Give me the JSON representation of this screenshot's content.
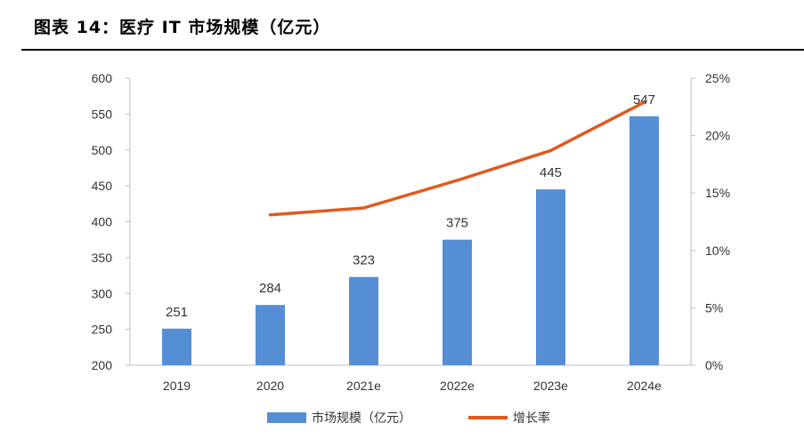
{
  "header": {
    "title": "图表 14：医疗 IT 市场规模（亿元）"
  },
  "chart_data": {
    "type": "bar",
    "categories": [
      "2019",
      "2020",
      "2021e",
      "2022e",
      "2023e",
      "2024e"
    ],
    "series": [
      {
        "name": "市场规模（亿元）",
        "type": "bar",
        "axis": "left",
        "color": "#558ED5",
        "values": [
          251,
          284,
          323,
          375,
          445,
          547
        ],
        "labels": [
          "251",
          "284",
          "323",
          "375",
          "445",
          "547"
        ]
      },
      {
        "name": "增长率",
        "type": "line",
        "axis": "right",
        "color": "#E05A1E",
        "values": [
          null,
          13.1,
          13.7,
          16.1,
          18.7,
          22.9
        ]
      }
    ],
    "y_left": {
      "min": 200,
      "max": 600,
      "step": 50,
      "ticks": [
        "200",
        "250",
        "300",
        "350",
        "400",
        "450",
        "500",
        "550",
        "600"
      ]
    },
    "y_right": {
      "min": 0,
      "max": 25,
      "step": 5,
      "ticks": [
        "0%",
        "5%",
        "10%",
        "15%",
        "20%",
        "25%"
      ]
    },
    "legend": {
      "position": "bottom"
    },
    "grid": false
  }
}
